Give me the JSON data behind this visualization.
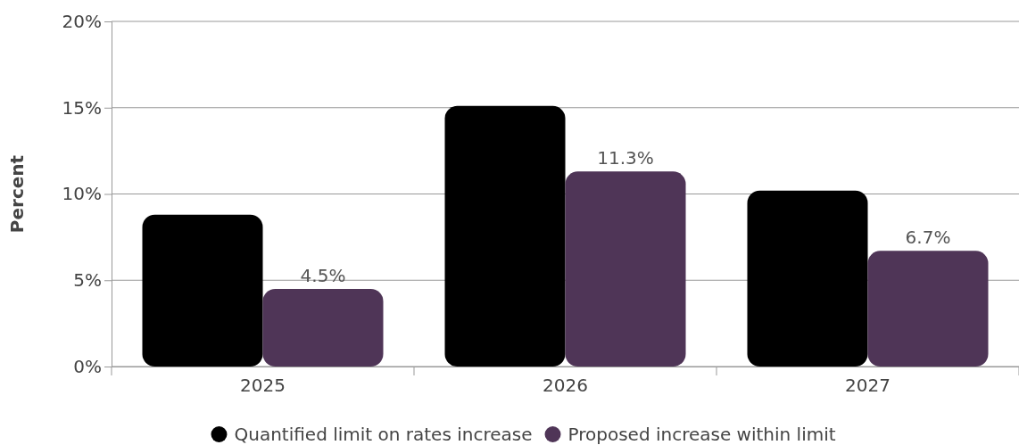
{
  "chart_data": {
    "type": "bar",
    "ylabel": "Percent",
    "categories": [
      "2025",
      "2026",
      "2027"
    ],
    "series": [
      {
        "name": "Quantified limit on rates increase",
        "color": "#000000",
        "values": [
          8.8,
          15.1,
          10.2
        ]
      },
      {
        "name": "Proposed increase within limit",
        "color": "#4f3557",
        "values": [
          4.5,
          11.3,
          6.7
        ],
        "value_labels": [
          "4.5%",
          "11.3%",
          "6.7%"
        ]
      }
    ],
    "ylim": [
      0,
      20
    ],
    "yticks": [
      {
        "value": 0,
        "label": "0%"
      },
      {
        "value": 5,
        "label": "5%"
      },
      {
        "value": 10,
        "label": "10%"
      },
      {
        "value": 15,
        "label": "15%"
      },
      {
        "value": 20,
        "label": "20%"
      }
    ],
    "grid": "y",
    "legend": "bottom"
  }
}
